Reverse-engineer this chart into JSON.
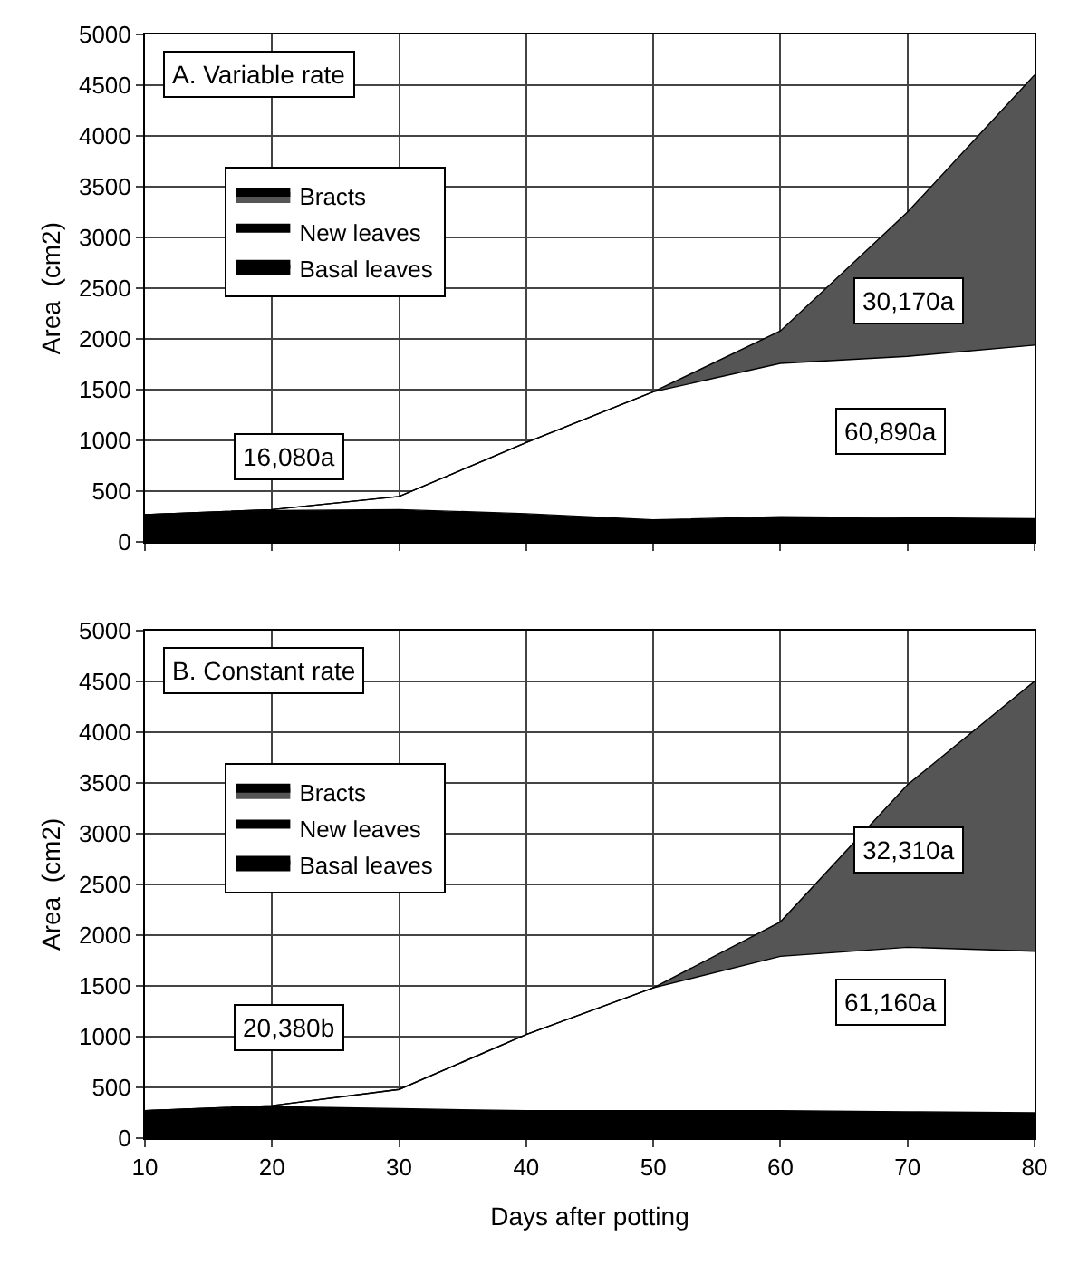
{
  "chart_data": [
    {
      "type": "area",
      "title": "A. Variable rate",
      "ylabel": "Area  (cm2)",
      "x": [
        10,
        20,
        30,
        40,
        50,
        60,
        70,
        80
      ],
      "stacked": true,
      "series": [
        {
          "name": "Basal leaves",
          "color": "#000000",
          "values": [
            270,
            310,
            320,
            280,
            220,
            250,
            240,
            230
          ]
        },
        {
          "name": "New leaves",
          "color": "#ffffff",
          "values": [
            0,
            10,
            130,
            700,
            1260,
            1510,
            1590,
            1710
          ]
        },
        {
          "name": "Bracts",
          "color": "#555555",
          "values": [
            0,
            0,
            0,
            0,
            0,
            320,
            1420,
            2660
          ]
        }
      ],
      "xlim": [
        10,
        80
      ],
      "xticks": [
        10,
        20,
        30,
        40,
        50,
        60,
        70,
        80
      ],
      "ylim": [
        0,
        5000
      ],
      "yticks": [
        0,
        500,
        1000,
        1500,
        2000,
        2500,
        3000,
        3500,
        4000,
        4500,
        5000
      ],
      "annotations": [
        "16,080a",
        "60,890a",
        "30,170a"
      ],
      "grid": true,
      "legend": "top left",
      "tick_labels": "y"
    },
    {
      "type": "area",
      "title": "B. Constant rate",
      "xlabel": "Days after potting",
      "ylabel": "Area  (cm2)",
      "x": [
        10,
        20,
        30,
        40,
        50,
        60,
        70,
        80
      ],
      "stacked": true,
      "series": [
        {
          "name": "Basal leaves",
          "color": "#000000",
          "values": [
            270,
            310,
            290,
            270,
            270,
            270,
            260,
            250
          ]
        },
        {
          "name": "New leaves",
          "color": "#ffffff",
          "values": [
            0,
            10,
            190,
            750,
            1210,
            1520,
            1620,
            1590
          ]
        },
        {
          "name": "Bracts",
          "color": "#555555",
          "values": [
            0,
            0,
            0,
            0,
            0,
            340,
            1600,
            2660
          ]
        }
      ],
      "xlim": [
        10,
        80
      ],
      "xticks": [
        10,
        20,
        30,
        40,
        50,
        60,
        70,
        80
      ],
      "ylim": [
        0,
        5000
      ],
      "yticks": [
        0,
        500,
        1000,
        1500,
        2000,
        2500,
        3000,
        3500,
        4000,
        4500,
        5000
      ],
      "annotations": [
        "20,380b",
        "61,160a",
        "32,310a"
      ],
      "grid": true,
      "legend": "top left"
    }
  ]
}
